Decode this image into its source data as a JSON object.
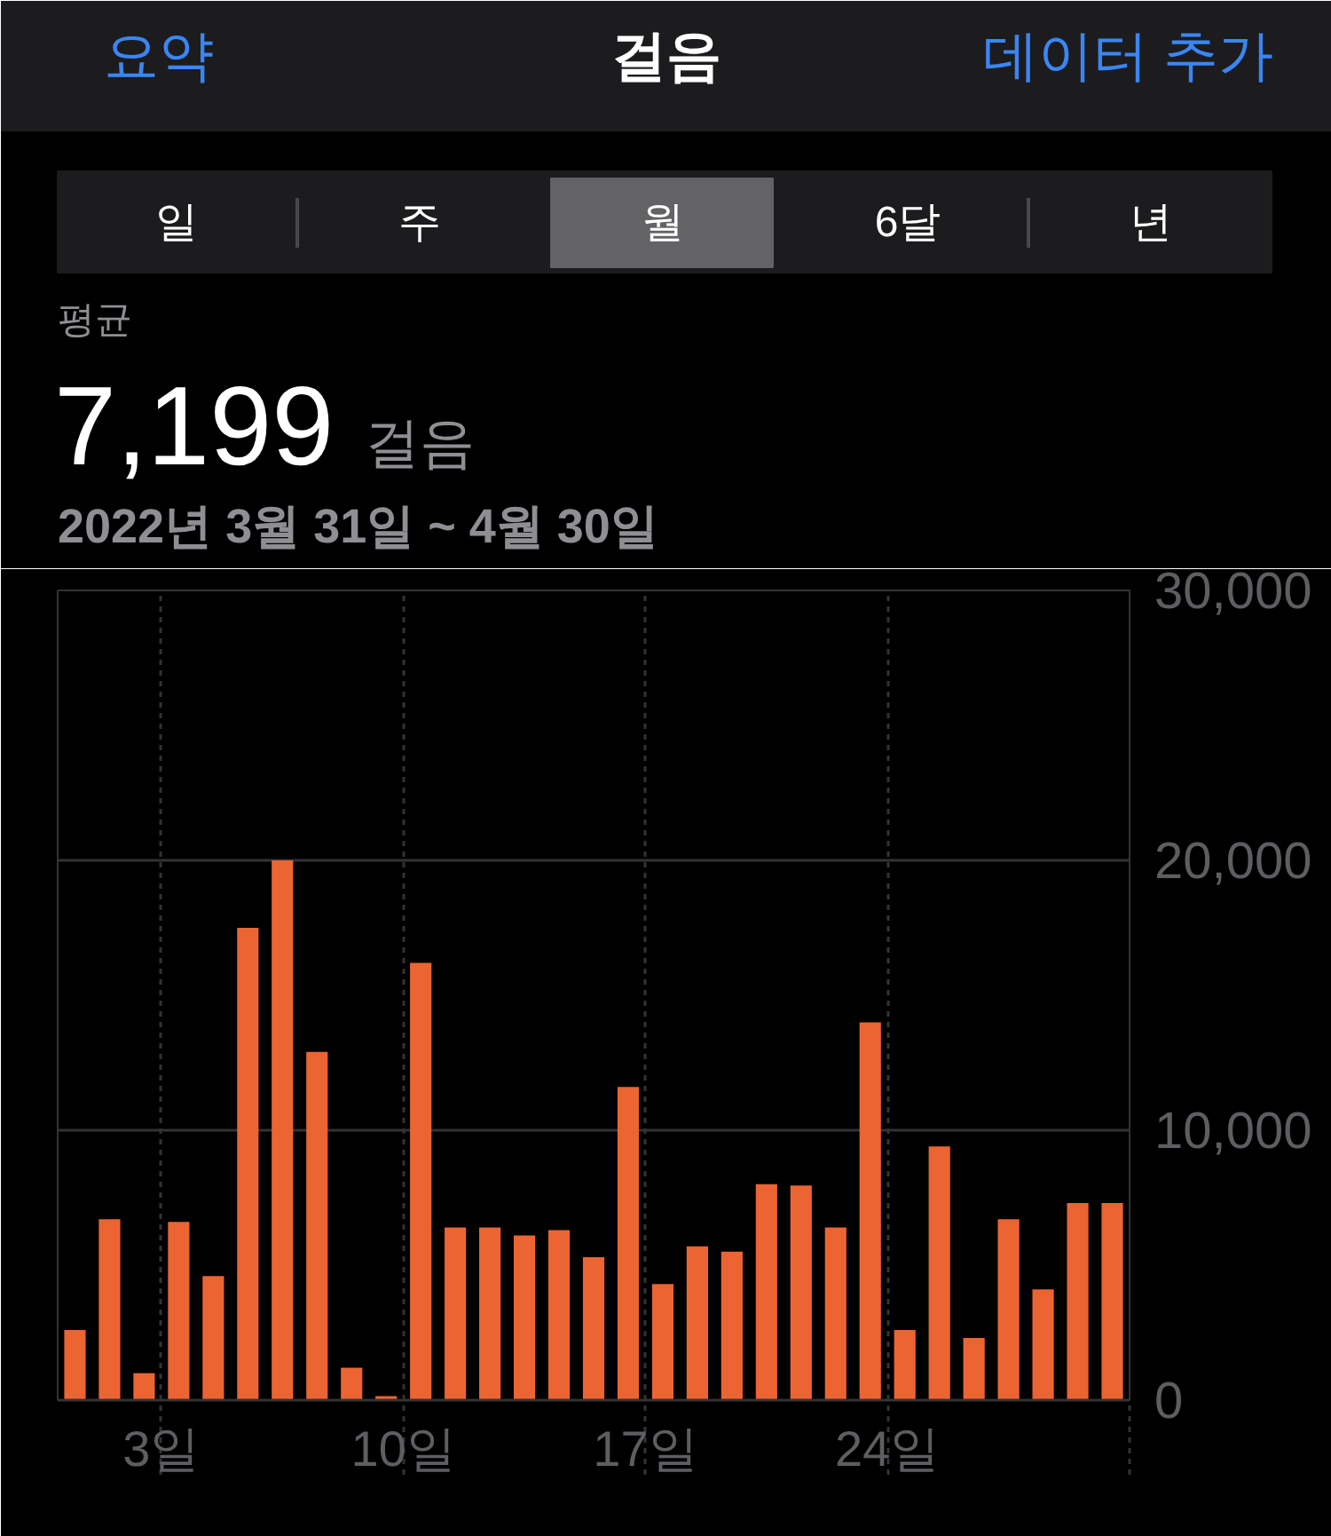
{
  "chart_data": {
    "type": "bar",
    "title": "걸음",
    "annotations": [
      "요약",
      "데이터 추가",
      "일",
      "주",
      "월",
      "6달",
      "년",
      "평균",
      "7,199",
      "걸음",
      "2022년 3월 31일 ~ 4월 30일"
    ],
    "x": [
      "2022-03-31T12:00",
      "2022-04-01T12:00",
      "2022-04-02T12:00",
      "2022-04-03T12:00",
      "2022-04-04T12:00",
      "2022-04-05T12:00",
      "2022-04-06T12:00",
      "2022-04-07T12:00",
      "2022-04-08T12:00",
      "2022-04-09T12:00",
      "2022-04-10T12:00",
      "2022-04-11T12:00",
      "2022-04-12T12:00",
      "2022-04-13T12:00",
      "2022-04-14T12:00",
      "2022-04-15T12:00",
      "2022-04-16T12:00",
      "2022-04-17T12:00",
      "2022-04-18T12:00",
      "2022-04-19T12:00",
      "2022-04-20T12:00",
      "2022-04-21T12:00",
      "2022-04-22T12:00",
      "2022-04-23T12:00",
      "2022-04-24T12:00",
      "2022-04-25T12:00",
      "2022-04-26T12:00",
      "2022-04-27T12:00",
      "2022-04-28T12:00",
      "2022-04-29T12:00",
      "2022-04-30T12:00"
    ],
    "values": [
      2600,
      6700,
      1000,
      6600,
      4600,
      17500,
      20000,
      12900,
      1200,
      150,
      16200,
      6400,
      6400,
      6100,
      6300,
      5300,
      11600,
      4300,
      5700,
      5500,
      8000,
      7950,
      6400,
      14000,
      2600,
      9400,
      2300,
      6700,
      4100,
      7300,
      7300
    ],
    "color": "#ec6432",
    "xlim": [
      "2022-03-31",
      "2022-05-01"
    ],
    "xticks": [
      {
        "value": "2022-04-03",
        "label": "3일"
      },
      {
        "value": "2022-04-10",
        "label": "10일"
      },
      {
        "value": "2022-04-17",
        "label": "17일"
      },
      {
        "value": "2022-04-24",
        "label": "24일"
      },
      {
        "value": "2022-05-01",
        "label": null
      }
    ],
    "ylim": [
      0,
      30000
    ],
    "yticks": [
      0,
      {
        "value": 10000,
        "label": "10,000"
      },
      {
        "value": 20000,
        "label": "20,000"
      },
      {
        "value": 30000,
        "label": "30,000"
      }
    ],
    "grid": true
  }
}
